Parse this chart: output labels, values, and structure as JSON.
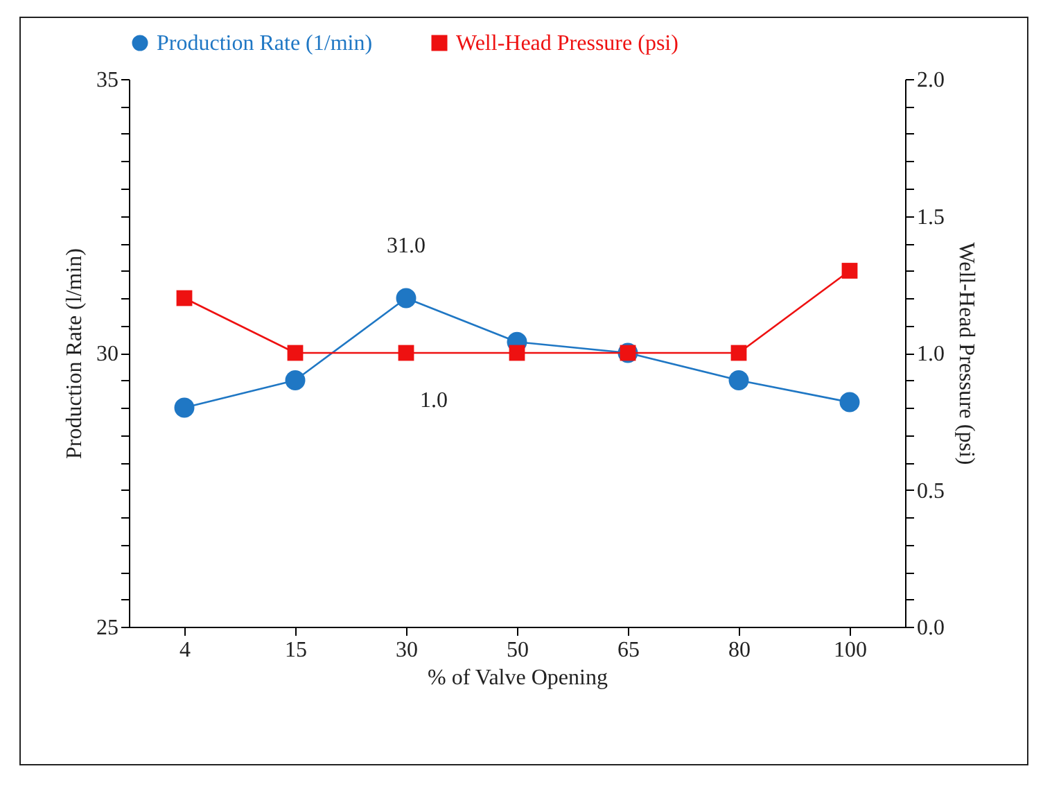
{
  "chart_data": {
    "type": "line",
    "xlabel": "% of Valve Opening",
    "ylabel": "Production Rate (l/min)",
    "y2label": "Well-Head Pressure (psi)",
    "categories": [
      "4",
      "15",
      "30",
      "50",
      "65",
      "80",
      "100"
    ],
    "series": [
      {
        "name": "Production Rate (1/min)",
        "color": "#1f77c4",
        "marker": "circle",
        "values": [
          29.0,
          29.5,
          31.0,
          30.2,
          30.0,
          29.5,
          29.1
        ],
        "value_labels": [
          null,
          null,
          "31.0",
          null,
          null,
          null,
          null
        ]
      },
      {
        "name": "Well-Head Pressure (psi)",
        "color": "#ee1111",
        "marker": "square",
        "axis": "y2",
        "values": [
          1.2,
          1.0,
          1.0,
          1.0,
          1.0,
          1.0,
          1.3
        ],
        "value_labels": [
          null,
          null,
          "1.0",
          null,
          null,
          null,
          null
        ]
      }
    ],
    "ylim": [
      25,
      35
    ],
    "yticks": [
      25,
      {
        "value": 25.5,
        "label": null
      },
      {
        "value": 26,
        "label": null
      },
      {
        "value": 26.5,
        "label": null
      },
      {
        "value": 27,
        "label": null
      },
      {
        "value": 27.5,
        "label": null
      },
      {
        "value": 28,
        "label": null
      },
      {
        "value": 28.5,
        "label": null
      },
      {
        "value": 29,
        "label": null
      },
      {
        "value": 29.5,
        "label": null
      },
      30,
      {
        "value": 30.5,
        "label": null
      },
      {
        "value": 31,
        "label": null
      },
      {
        "value": 31.5,
        "label": null
      },
      {
        "value": 32,
        "label": null
      },
      {
        "value": 32.5,
        "label": null
      },
      {
        "value": 33,
        "label": null
      },
      {
        "value": 33.5,
        "label": null
      },
      {
        "value": 34,
        "label": null
      },
      {
        "value": 34.5,
        "label": null
      },
      35
    ],
    "y2lim": [
      0,
      2
    ],
    "y2ticks": [
      {
        "value": 0,
        "label": "0.0"
      },
      {
        "value": 0.1,
        "label": null
      },
      {
        "value": 0.2,
        "label": null
      },
      {
        "value": 0.3,
        "label": null
      },
      {
        "value": 0.4,
        "label": null
      },
      {
        "value": 0.5,
        "label": "0.5"
      },
      {
        "value": 0.6,
        "label": null
      },
      {
        "value": 0.7,
        "label": null
      },
      {
        "value": 0.8,
        "label": null
      },
      {
        "value": 0.9,
        "label": null
      },
      {
        "value": 1.0,
        "label": "1.0"
      },
      {
        "value": 1.1,
        "label": null
      },
      {
        "value": 1.2,
        "label": null
      },
      {
        "value": 1.3,
        "label": null
      },
      {
        "value": 1.4,
        "label": null
      },
      {
        "value": 1.5,
        "label": "1.5"
      },
      {
        "value": 1.6,
        "label": null
      },
      {
        "value": 1.7,
        "label": null
      },
      {
        "value": 1.8,
        "label": null
      },
      {
        "value": 1.9,
        "label": null
      },
      {
        "value": 2.0,
        "label": "2.0"
      }
    ],
    "grid": false,
    "legend": "top"
  }
}
